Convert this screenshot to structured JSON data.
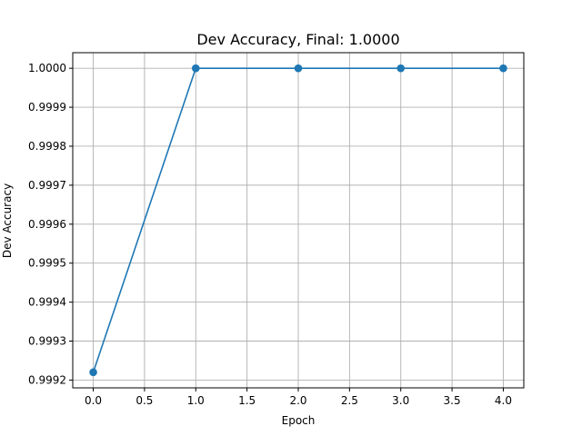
{
  "chart_data": {
    "type": "line",
    "title": "Dev Accuracy, Final: 1.0000",
    "xlabel": "Epoch",
    "ylabel": "Dev Accuracy",
    "x": [
      0,
      1,
      2,
      3,
      4
    ],
    "series": [
      {
        "values": [
          0.99922,
          1.0,
          1.0,
          1.0,
          1.0
        ],
        "color": "#1f77b4",
        "marker": "circle"
      }
    ],
    "xlim": [
      -0.2,
      4.2
    ],
    "ylim": [
      0.99918,
      1.00004
    ],
    "xticks": [
      0.0,
      0.5,
      1.0,
      1.5,
      2.0,
      2.5,
      3.0,
      3.5,
      4.0
    ],
    "xtick_labels": [
      "0.0",
      "0.5",
      "1.0",
      "1.5",
      "2.0",
      "2.5",
      "3.0",
      "3.5",
      "4.0"
    ],
    "yticks": [
      0.9992,
      0.9993,
      0.9994,
      0.9995,
      0.9996,
      0.9997,
      0.9998,
      0.9999,
      1.0
    ],
    "ytick_labels": [
      "0.9992",
      "0.9993",
      "0.9994",
      "0.9995",
      "0.9996",
      "0.9997",
      "0.9998",
      "0.9999",
      "1.0000"
    ],
    "grid": true,
    "legend": false
  }
}
